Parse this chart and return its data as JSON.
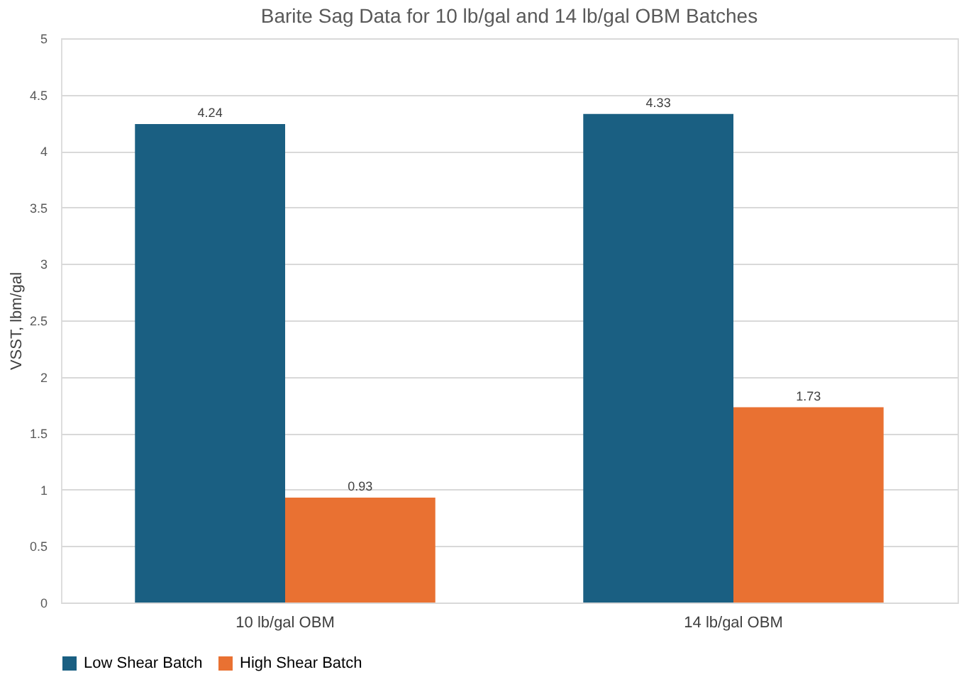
{
  "chart_data": {
    "type": "bar",
    "title": "Barite Sag Data for 10 lb/gal and 14 lb/gal OBM Batches",
    "ylabel": "VSST, lbm/gal",
    "categories": [
      "10 lb/gal OBM",
      "14 lb/gal OBM"
    ],
    "series": [
      {
        "name": "Low Shear Batch",
        "color": "#1a5f82",
        "values": [
          4.24,
          4.33
        ]
      },
      {
        "name": "High Shear Batch",
        "color": "#e97132",
        "values": [
          0.93,
          1.73
        ]
      }
    ],
    "ylim": [
      0,
      5
    ],
    "yticks": [
      0,
      0.5,
      1,
      1.5,
      2,
      2.5,
      3,
      3.5,
      4,
      4.5,
      5
    ],
    "grid": "y",
    "legend": "bottom",
    "data_labels": true
  }
}
